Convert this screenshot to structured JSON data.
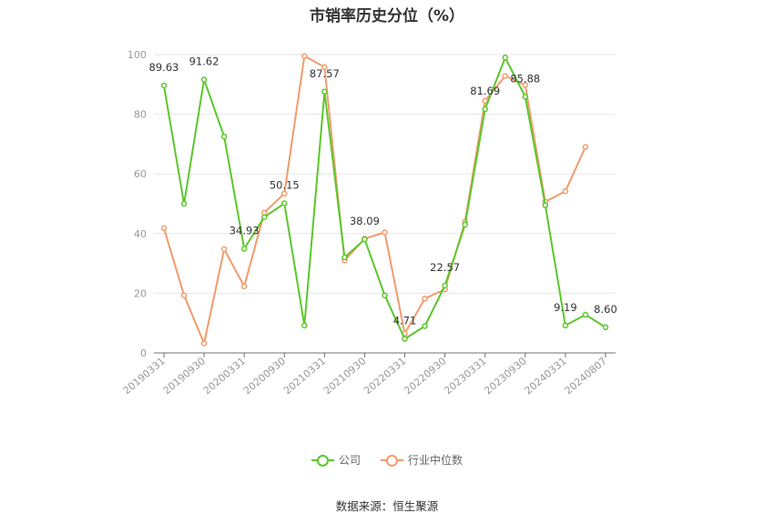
{
  "chart_data": {
    "type": "line",
    "title": "市销率历史分位（%）",
    "xlabel": "",
    "ylabel": "",
    "ylim": [
      0,
      100
    ],
    "yticks": [
      0,
      20,
      40,
      60,
      80,
      100
    ],
    "grid": true,
    "legend_position": "bottom",
    "x": [
      "20190331",
      "20190630",
      "20190930",
      "20191231",
      "20200331",
      "20200630",
      "20200930",
      "20201231",
      "20210331",
      "20210630",
      "20210930",
      "20211231",
      "20220331",
      "20220630",
      "20220930",
      "20221231",
      "20230331",
      "20230630",
      "20230930",
      "20231231",
      "20240331",
      "20240630",
      "20240807"
    ],
    "x_tick_labels": [
      "20190331",
      "20190930",
      "20200331",
      "20200930",
      "20210331",
      "20210930",
      "20220331",
      "20220930",
      "20230331",
      "20230930",
      "20240331",
      "20240807"
    ],
    "series": [
      {
        "name": "公司",
        "color": "#5cc72b",
        "values": [
          89.63,
          50.0,
          91.62,
          72.5,
          34.93,
          45.5,
          50.15,
          9.2,
          87.57,
          32.0,
          38.09,
          19.3,
          4.71,
          9.0,
          22.57,
          43.0,
          81.69,
          99.0,
          85.88,
          49.5,
          9.19,
          12.8,
          8.6
        ],
        "labels": {
          "0": "89.63",
          "2": "91.62",
          "4": "34.93",
          "6": "50.15",
          "8": "87.57",
          "10": "38.09",
          "12": "4.71",
          "14": "22.57",
          "16": "81.69",
          "18": "85.88",
          "20": "9.19",
          "22": "8.60"
        }
      },
      {
        "name": "行业中位数",
        "color": "#f29b6c",
        "values": [
          41.8,
          19.3,
          3.2,
          34.8,
          22.3,
          47.0,
          53.4,
          99.5,
          95.8,
          31.0,
          38.3,
          40.4,
          6.5,
          18.2,
          21.3,
          44.0,
          84.5,
          92.8,
          89.8,
          50.7,
          54.2,
          69.0,
          null
        ]
      }
    ]
  },
  "source_text": "数据来源：恒生聚源"
}
